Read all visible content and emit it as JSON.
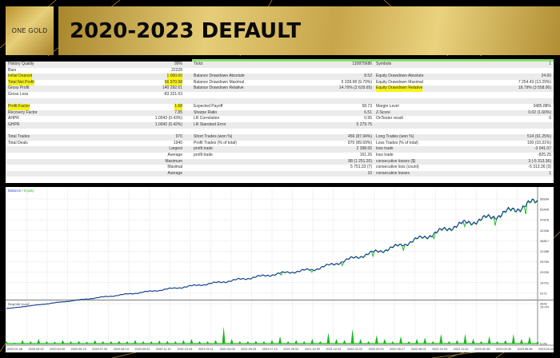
{
  "header": {
    "logo_text": "ONE GOLD",
    "title": "2020-2023 DEFAULT"
  },
  "stats": {
    "rows": [
      [
        "History Quality",
        "99%",
        "Ticks",
        "110875686",
        "Symbols",
        "1"
      ],
      [
        "Bars",
        "22228",
        "",
        "",
        "",
        ""
      ],
      [
        "Initial Deposit",
        "1 000.00",
        "Balance Drawdown Absolute",
        "8.52",
        "Equity Drawdown Absolute",
        "24.60"
      ],
      [
        "Total Net Profit",
        "56 970.98",
        "Balance Drawdown Maximal",
        "5 328.98 (9.79%)",
        "Equity Drawdown Maximal",
        "7 254.43 (13.29%)"
      ],
      [
        "Gross Profit",
        "140 292.61",
        "Balance Drawdown Relative",
        "14.70% (2 629.65)",
        "Equity Drawdown Relative",
        "18.79% (3 558.90)"
      ],
      [
        "Gross Loss",
        "-83 321.63",
        "",
        "",
        "",
        ""
      ],
      [
        "",
        "",
        "",
        "",
        "",
        ""
      ],
      [
        "Profit Factor",
        "1.68",
        "Expected Payoff",
        "58.73",
        "Margin Level",
        "3485.88%"
      ],
      [
        "Recovery Factor",
        "7.85",
        "Sharpe Ratio",
        "6.51",
        "Z-Score",
        "0.02 (1.60%)"
      ],
      [
        "AHPR",
        "1.0043 (0.43%)",
        "LR Correlation",
        "0.95",
        "OnTester result",
        "0"
      ],
      [
        "GHPR",
        "1.0042 (0.42%)",
        "LR Standard Error",
        "5 279.75",
        "",
        ""
      ],
      [
        "",
        "",
        "",
        "",
        "",
        ""
      ],
      [
        "Total Trades",
        "970",
        "Short Trades (won %)",
        "456 (87.94%)",
        "Long Trades (won %)",
        "514 (91.25%)"
      ],
      [
        "Total Deals",
        "1940",
        "Profit Trades (% of total)",
        "870 (89.69%)",
        "Loss Trades (% of total)",
        "100 (10.31%)"
      ],
      [
        "",
        "Largest",
        "profit trade",
        "2 398.65",
        "loss trade",
        "-3 041.07"
      ],
      [
        "",
        "Average",
        "profit trade",
        "161.26",
        "loss trade",
        "-825.25"
      ],
      [
        "",
        "Maximum",
        "",
        "88 (1 251.20)",
        "consecutive losses ($)",
        "3 (-5 313.36)"
      ],
      [
        "",
        "Maximal",
        "",
        "5 751.33 (7)",
        "consecutive loss (count)",
        "-5 313.36 (3)"
      ],
      [
        "",
        "Average",
        "",
        "10",
        "consecutive losses",
        "1"
      ],
      [
        "",
        "",
        "",
        "",
        "",
        ""
      ]
    ],
    "highlighted": [
      "Initial Deposit",
      "1 000.00",
      "Total Net Profit",
      "56 970.98",
      "Profit Factor",
      "1.68",
      "Equity Drawdown Relative"
    ],
    "highlight_color": "#f7f21a"
  },
  "chart_data": {
    "type": "line",
    "legend": {
      "balance": "Balance",
      "separator": " / ",
      "equity": "Equity"
    },
    "colors": {
      "balance": "#1a2fa8",
      "equity": "#22c022",
      "deposit_load": "#18b818"
    },
    "y_ticks": [
      58934,
      53405,
      47876,
      42346,
      36817,
      31288,
      25759,
      20230,
      14701,
      9171,
      3642
    ],
    "ylim": [
      3642,
      58934
    ],
    "x_ticks": [
      "2020.01.08",
      "2020.03.02",
      "2020.04.09",
      "2020.05.19",
      "2020.07.09",
      "2020.08.13",
      "2020.09.22",
      "2020.11.10",
      "2021.01.04",
      "2021.02.11",
      "2021.04.05",
      "2021.05.25",
      "2021.07.13",
      "2021.09.02",
      "2021.10.29",
      "2021.12.22",
      "2022.02.22",
      "2022.03.23",
      "2022.05.17",
      "2022.08.01",
      "2022.10.04",
      "2022.11.02",
      "2023.02.08",
      "2023.04.06",
      "2023.06.08",
      "2023.09.22"
    ],
    "balance": [
      1000,
      2300,
      3600,
      4900,
      6200,
      7500,
      8800,
      10100,
      11500,
      12900,
      14300,
      15800,
      17400,
      19000,
      20500,
      21700,
      24500,
      27800,
      30800,
      33500,
      37200,
      41000,
      45000,
      47500,
      50200,
      54000,
      57970
    ],
    "deposit_load": {
      "label": "Deposit Load",
      "y_ticks": [
        "15.0%",
        "0.0%"
      ],
      "max": 15.0,
      "values": [
        1,
        0.5,
        1.5,
        1,
        2,
        1,
        0.8,
        1.5,
        1,
        1.2,
        0.8,
        1.5,
        1,
        1,
        1.2,
        1,
        1.5,
        1,
        1,
        1.3,
        1.2,
        1,
        1.5,
        2,
        1,
        1,
        1.5,
        7,
        2,
        1,
        1,
        1.2,
        1,
        1.5,
        3,
        1,
        1.5,
        1,
        2,
        1,
        4.5,
        2,
        1.5,
        6,
        2,
        1,
        3.5,
        2,
        1,
        3,
        1,
        2,
        2.5,
        1,
        4,
        1,
        1.5,
        4,
        2,
        1,
        3,
        1,
        1.5,
        4,
        2,
        3,
        1
      ]
    }
  }
}
